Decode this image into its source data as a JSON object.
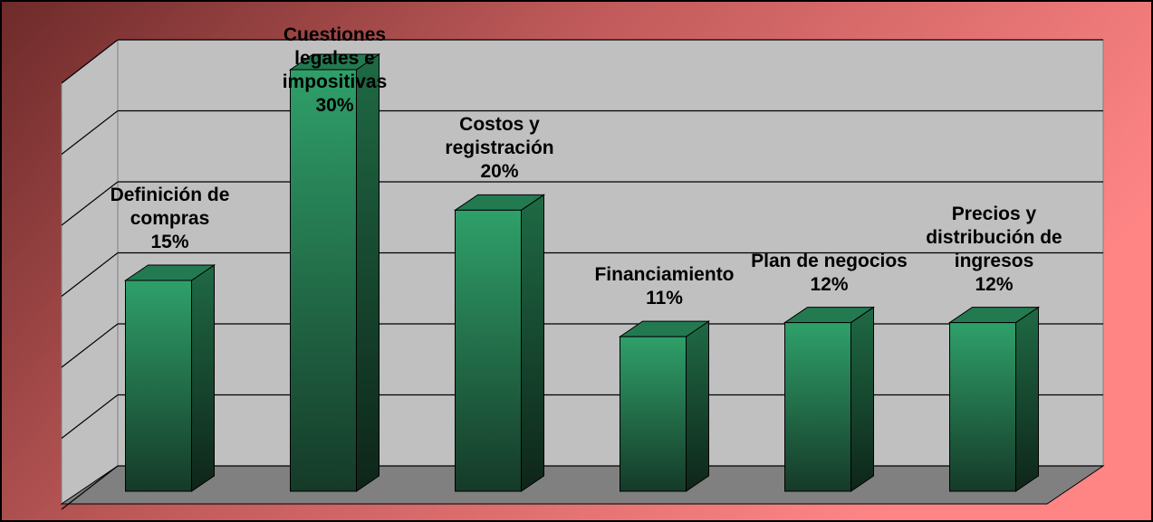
{
  "chart_data": {
    "type": "bar",
    "categories": [
      "Definición de compras",
      "Cuestiones legales e impositivas",
      "Costos y registración",
      "Financiamiento",
      "Plan de negocios",
      "Precios y distribución de ingresos"
    ],
    "values": [
      15,
      30,
      20,
      11,
      12,
      12
    ],
    "value_labels": [
      "15%",
      "30%",
      "20%",
      "11%",
      "12%",
      "12%"
    ],
    "color": "#2e9e68",
    "ylim": [
      0,
      30
    ],
    "yticks": [
      0,
      5,
      10,
      15,
      20,
      25,
      30
    ],
    "grid": true
  }
}
